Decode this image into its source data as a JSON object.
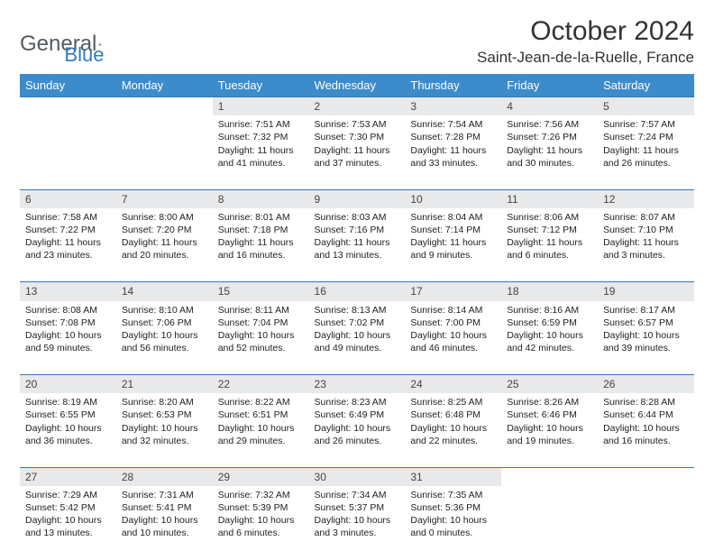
{
  "brand": {
    "general": "General",
    "blue": "Blue"
  },
  "title": "October 2024",
  "location": "Saint-Jean-de-la-Ruelle, France",
  "day_headers": [
    "Sunday",
    "Monday",
    "Tuesday",
    "Wednesday",
    "Thursday",
    "Friday",
    "Saturday"
  ],
  "colors": {
    "header_bg": "#3c8ccc",
    "header_text": "#ffffff",
    "daynum_bg": "#e8e9ea",
    "border": "#2f7bbf",
    "text": "#222222",
    "logo_gray": "#555a5e",
    "logo_blue": "#2f7bbf"
  },
  "weeks": [
    [
      null,
      null,
      {
        "n": "1",
        "sr": "Sunrise: 7:51 AM",
        "ss": "Sunset: 7:32 PM",
        "dl": "Daylight: 11 hours and 41 minutes."
      },
      {
        "n": "2",
        "sr": "Sunrise: 7:53 AM",
        "ss": "Sunset: 7:30 PM",
        "dl": "Daylight: 11 hours and 37 minutes."
      },
      {
        "n": "3",
        "sr": "Sunrise: 7:54 AM",
        "ss": "Sunset: 7:28 PM",
        "dl": "Daylight: 11 hours and 33 minutes."
      },
      {
        "n": "4",
        "sr": "Sunrise: 7:56 AM",
        "ss": "Sunset: 7:26 PM",
        "dl": "Daylight: 11 hours and 30 minutes."
      },
      {
        "n": "5",
        "sr": "Sunrise: 7:57 AM",
        "ss": "Sunset: 7:24 PM",
        "dl": "Daylight: 11 hours and 26 minutes."
      }
    ],
    [
      {
        "n": "6",
        "sr": "Sunrise: 7:58 AM",
        "ss": "Sunset: 7:22 PM",
        "dl": "Daylight: 11 hours and 23 minutes."
      },
      {
        "n": "7",
        "sr": "Sunrise: 8:00 AM",
        "ss": "Sunset: 7:20 PM",
        "dl": "Daylight: 11 hours and 20 minutes."
      },
      {
        "n": "8",
        "sr": "Sunrise: 8:01 AM",
        "ss": "Sunset: 7:18 PM",
        "dl": "Daylight: 11 hours and 16 minutes."
      },
      {
        "n": "9",
        "sr": "Sunrise: 8:03 AM",
        "ss": "Sunset: 7:16 PM",
        "dl": "Daylight: 11 hours and 13 minutes."
      },
      {
        "n": "10",
        "sr": "Sunrise: 8:04 AM",
        "ss": "Sunset: 7:14 PM",
        "dl": "Daylight: 11 hours and 9 minutes."
      },
      {
        "n": "11",
        "sr": "Sunrise: 8:06 AM",
        "ss": "Sunset: 7:12 PM",
        "dl": "Daylight: 11 hours and 6 minutes."
      },
      {
        "n": "12",
        "sr": "Sunrise: 8:07 AM",
        "ss": "Sunset: 7:10 PM",
        "dl": "Daylight: 11 hours and 3 minutes."
      }
    ],
    [
      {
        "n": "13",
        "sr": "Sunrise: 8:08 AM",
        "ss": "Sunset: 7:08 PM",
        "dl": "Daylight: 10 hours and 59 minutes."
      },
      {
        "n": "14",
        "sr": "Sunrise: 8:10 AM",
        "ss": "Sunset: 7:06 PM",
        "dl": "Daylight: 10 hours and 56 minutes."
      },
      {
        "n": "15",
        "sr": "Sunrise: 8:11 AM",
        "ss": "Sunset: 7:04 PM",
        "dl": "Daylight: 10 hours and 52 minutes."
      },
      {
        "n": "16",
        "sr": "Sunrise: 8:13 AM",
        "ss": "Sunset: 7:02 PM",
        "dl": "Daylight: 10 hours and 49 minutes."
      },
      {
        "n": "17",
        "sr": "Sunrise: 8:14 AM",
        "ss": "Sunset: 7:00 PM",
        "dl": "Daylight: 10 hours and 46 minutes."
      },
      {
        "n": "18",
        "sr": "Sunrise: 8:16 AM",
        "ss": "Sunset: 6:59 PM",
        "dl": "Daylight: 10 hours and 42 minutes."
      },
      {
        "n": "19",
        "sr": "Sunrise: 8:17 AM",
        "ss": "Sunset: 6:57 PM",
        "dl": "Daylight: 10 hours and 39 minutes."
      }
    ],
    [
      {
        "n": "20",
        "sr": "Sunrise: 8:19 AM",
        "ss": "Sunset: 6:55 PM",
        "dl": "Daylight: 10 hours and 36 minutes."
      },
      {
        "n": "21",
        "sr": "Sunrise: 8:20 AM",
        "ss": "Sunset: 6:53 PM",
        "dl": "Daylight: 10 hours and 32 minutes."
      },
      {
        "n": "22",
        "sr": "Sunrise: 8:22 AM",
        "ss": "Sunset: 6:51 PM",
        "dl": "Daylight: 10 hours and 29 minutes."
      },
      {
        "n": "23",
        "sr": "Sunrise: 8:23 AM",
        "ss": "Sunset: 6:49 PM",
        "dl": "Daylight: 10 hours and 26 minutes."
      },
      {
        "n": "24",
        "sr": "Sunrise: 8:25 AM",
        "ss": "Sunset: 6:48 PM",
        "dl": "Daylight: 10 hours and 22 minutes."
      },
      {
        "n": "25",
        "sr": "Sunrise: 8:26 AM",
        "ss": "Sunset: 6:46 PM",
        "dl": "Daylight: 10 hours and 19 minutes."
      },
      {
        "n": "26",
        "sr": "Sunrise: 8:28 AM",
        "ss": "Sunset: 6:44 PM",
        "dl": "Daylight: 10 hours and 16 minutes."
      }
    ],
    [
      {
        "n": "27",
        "sr": "Sunrise: 7:29 AM",
        "ss": "Sunset: 5:42 PM",
        "dl": "Daylight: 10 hours and 13 minutes."
      },
      {
        "n": "28",
        "sr": "Sunrise: 7:31 AM",
        "ss": "Sunset: 5:41 PM",
        "dl": "Daylight: 10 hours and 10 minutes."
      },
      {
        "n": "29",
        "sr": "Sunrise: 7:32 AM",
        "ss": "Sunset: 5:39 PM",
        "dl": "Daylight: 10 hours and 6 minutes."
      },
      {
        "n": "30",
        "sr": "Sunrise: 7:34 AM",
        "ss": "Sunset: 5:37 PM",
        "dl": "Daylight: 10 hours and 3 minutes."
      },
      {
        "n": "31",
        "sr": "Sunrise: 7:35 AM",
        "ss": "Sunset: 5:36 PM",
        "dl": "Daylight: 10 hours and 0 minutes."
      },
      null,
      null
    ]
  ]
}
